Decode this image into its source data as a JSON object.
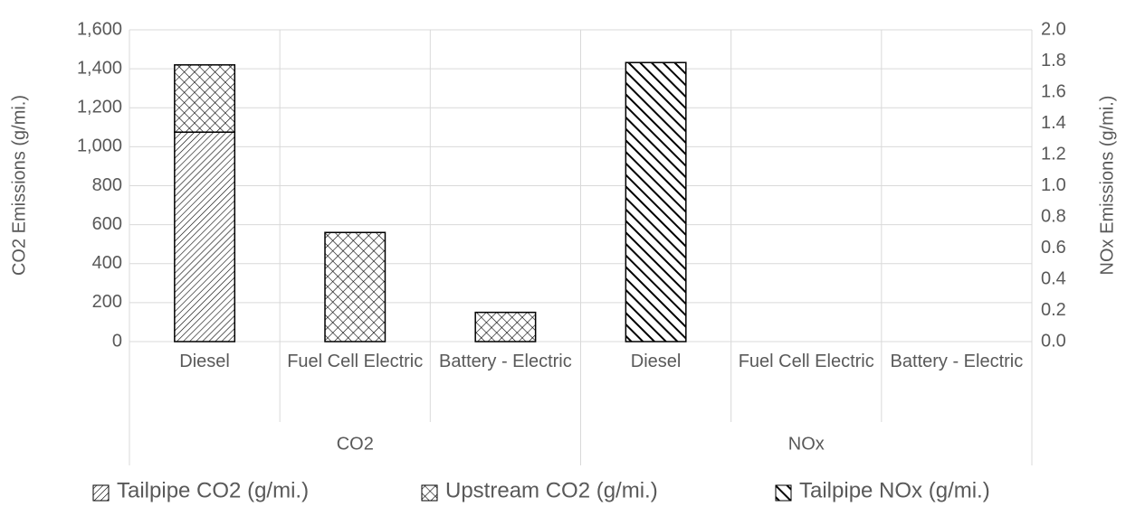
{
  "chart_data": {
    "type": "stacked-bar",
    "categories": [
      "Diesel",
      "Fuel Cell Electric",
      "Battery - Electric",
      "Diesel",
      "Fuel Cell Electric",
      "Battery - Electric"
    ],
    "groups": [
      {
        "name": "CO2",
        "size": 3
      },
      {
        "name": "NOx",
        "size": 3
      }
    ],
    "y_label": "CO2 Emissions (g/mi.)",
    "y2_label": "NOx Emissions (g/mi.)",
    "ylim": [
      0,
      1600
    ],
    "yticks": [
      0,
      200,
      400,
      600,
      800,
      {
        "value": 1000,
        "label": "1,000"
      },
      {
        "value": 1200,
        "label": "1,200"
      },
      {
        "value": 1400,
        "label": "1,400"
      },
      {
        "value": 1600,
        "label": "1,600"
      }
    ],
    "y2lim": [
      0,
      2
    ],
    "y2ticks": [
      {
        "value": 0,
        "label": "0.0"
      },
      0.2,
      0.4,
      0.6,
      0.8,
      {
        "value": 1,
        "label": "1.0"
      },
      1.2,
      1.4,
      1.6,
      1.8,
      {
        "value": 2,
        "label": "2.0"
      }
    ],
    "grid": true,
    "legend": "bottom",
    "series": [
      {
        "name": "Tailpipe CO2 (g/mi.)",
        "color": "#000000",
        "pattern": "light-diagonal",
        "values": [
          1075,
          0,
          0,
          null,
          null,
          null
        ]
      },
      {
        "name": "Upstream CO2 (g/mi.)",
        "color": "#000000",
        "pattern": "crosshatch",
        "values": [
          345,
          560,
          150,
          null,
          null,
          null
        ]
      },
      {
        "name": "Tailpipe NOx (g/mi.)",
        "color": "#000000",
        "pattern": "dark-backslash",
        "axis": "y2",
        "values": [
          null,
          null,
          null,
          1.79,
          0,
          0
        ]
      }
    ]
  }
}
